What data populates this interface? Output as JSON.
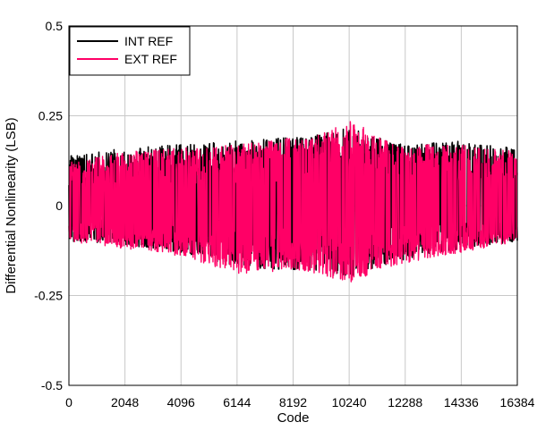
{
  "chart_data": {
    "type": "line",
    "title": "",
    "xlabel": "Code",
    "ylabel": "Differential Nonlinearity (LSB)",
    "xlim": [
      0,
      16384
    ],
    "ylim": [
      -0.5,
      0.5
    ],
    "x_ticks": [
      0,
      2048,
      4096,
      6144,
      8192,
      10240,
      12288,
      14336,
      16384
    ],
    "y_ticks": [
      -0.5,
      -0.25,
      0,
      0.25,
      0.5
    ],
    "x_tick_labels": [
      "0",
      "2048",
      "4096",
      "6144",
      "8192",
      "10240",
      "12288",
      "14336",
      "16384"
    ],
    "y_tick_labels": [
      "-0.5",
      "-0.25",
      "0",
      "0.25",
      "0.5"
    ],
    "grid": true,
    "legend_position": "top-left",
    "series": [
      {
        "name": "INT REF",
        "color": "#000000",
        "envelope_x": [
          0,
          2048,
          4096,
          6144,
          8192,
          9216,
          10240,
          11264,
          12288,
          14336,
          16384
        ],
        "envelope_max": [
          0.14,
          0.16,
          0.17,
          0.18,
          0.19,
          0.2,
          0.22,
          0.19,
          0.17,
          0.18,
          0.16
        ],
        "envelope_min": [
          -0.1,
          -0.11,
          -0.13,
          -0.17,
          -0.18,
          -0.18,
          -0.2,
          -0.17,
          -0.15,
          -0.12,
          -0.1
        ]
      },
      {
        "name": "EXT REF",
        "color": "#ff0066",
        "envelope_x": [
          0,
          2048,
          4096,
          6144,
          8192,
          9216,
          10240,
          11264,
          12288,
          14336,
          16384
        ],
        "envelope_max": [
          0.12,
          0.15,
          0.16,
          0.17,
          0.19,
          0.2,
          0.25,
          0.19,
          0.17,
          0.17,
          0.15
        ],
        "envelope_min": [
          -0.1,
          -0.12,
          -0.14,
          -0.19,
          -0.18,
          -0.19,
          -0.22,
          -0.18,
          -0.16,
          -0.13,
          -0.1
        ]
      }
    ]
  }
}
